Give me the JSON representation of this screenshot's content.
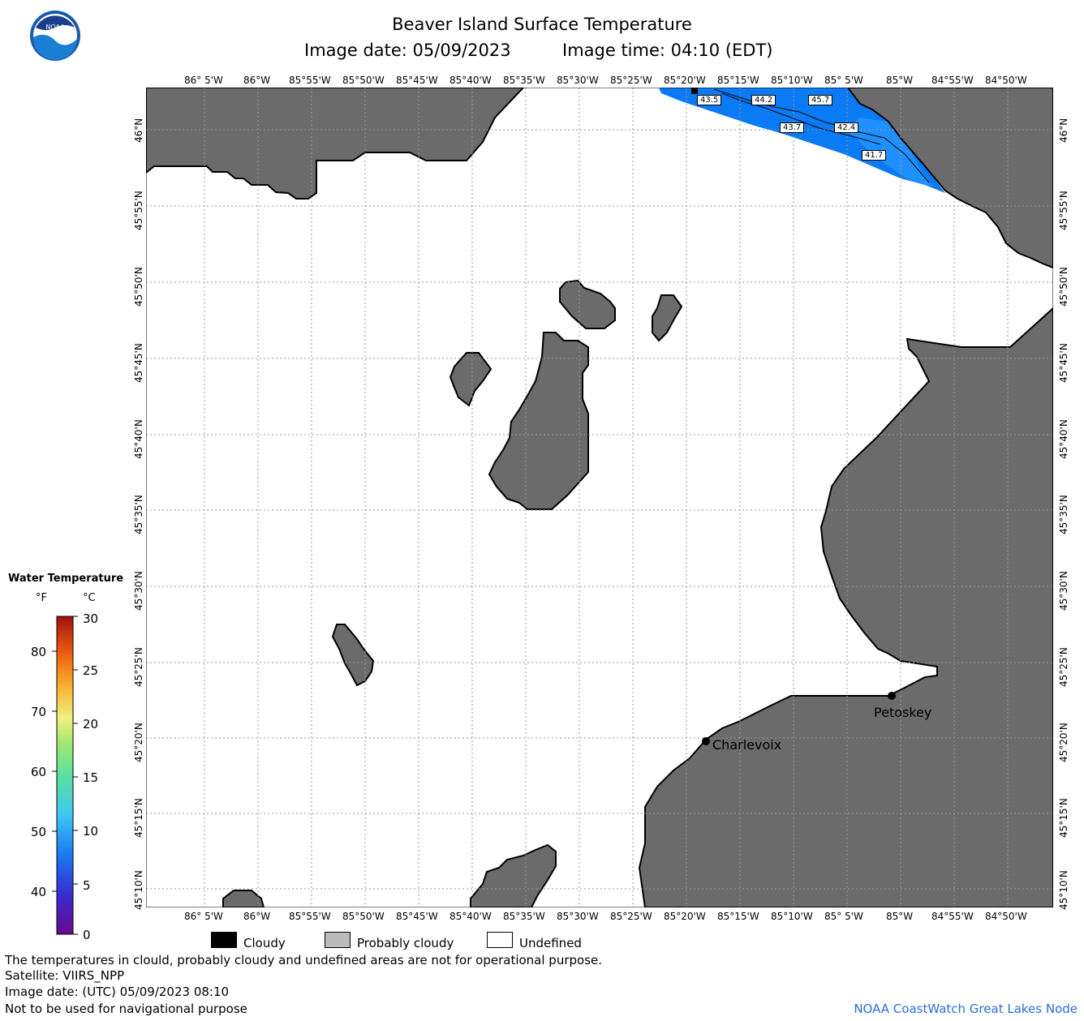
{
  "header": {
    "title": "Beaver Island Surface Temperature",
    "image_date": "Image date: 05/09/2023",
    "image_time": "Image time: 04:10 (EDT)"
  },
  "logo": {
    "text": "NOAA"
  },
  "map": {
    "lon_labels": [
      "86° 5'W",
      "86°W",
      "85°55'W",
      "85°50'W",
      "85°45'W",
      "85°40'W",
      "85°35'W",
      "85°30'W",
      "85°25'W",
      "85°20'W",
      "85°15'W",
      "85°10'W",
      "85° 5'W",
      "85°W",
      "84°55'W",
      "84°50'W"
    ],
    "lat_labels": [
      "46°N",
      "45°55'N",
      "45°50'N",
      "45°45'N",
      "45°40'N",
      "45°35'N",
      "45°30'N",
      "45°25'N",
      "45°20'N",
      "45°15'N",
      "45°10'N"
    ],
    "cities": [
      {
        "name": "Petoskey"
      },
      {
        "name": "Charlevoix"
      }
    ],
    "temp_labels": [
      "43.5",
      "44.2",
      "45.7",
      "43.7",
      "42.4",
      "41.7"
    ],
    "colors": {
      "land": "#6b6b6b",
      "water_undefined": "#ffffff",
      "sst_cold": "#0a7af5",
      "sst_mid": "#1e90ff"
    }
  },
  "colorbar": {
    "title": "Water Temperature",
    "unit_f": "°F",
    "unit_c": "°C",
    "f_ticks": [
      "80",
      "70",
      "60",
      "50",
      "40"
    ],
    "c_ticks": [
      "30",
      "25",
      "20",
      "15",
      "10",
      "5",
      "0"
    ]
  },
  "legend": {
    "cloudy": "Cloudy",
    "probably_cloudy": "Probably cloudy",
    "undefined": "Undefined"
  },
  "footer": {
    "note": "The temperatures in clould, probably cloudy and undefined areas are not for operational purpose.",
    "satellite": "Satellite: VIIRS_NPP",
    "utc_date": "Image date: (UTC) 05/09/2023  08:10",
    "nav_warning": "Not to be used for navigational purpose",
    "credit": "NOAA CoastWatch Great Lakes Node"
  }
}
